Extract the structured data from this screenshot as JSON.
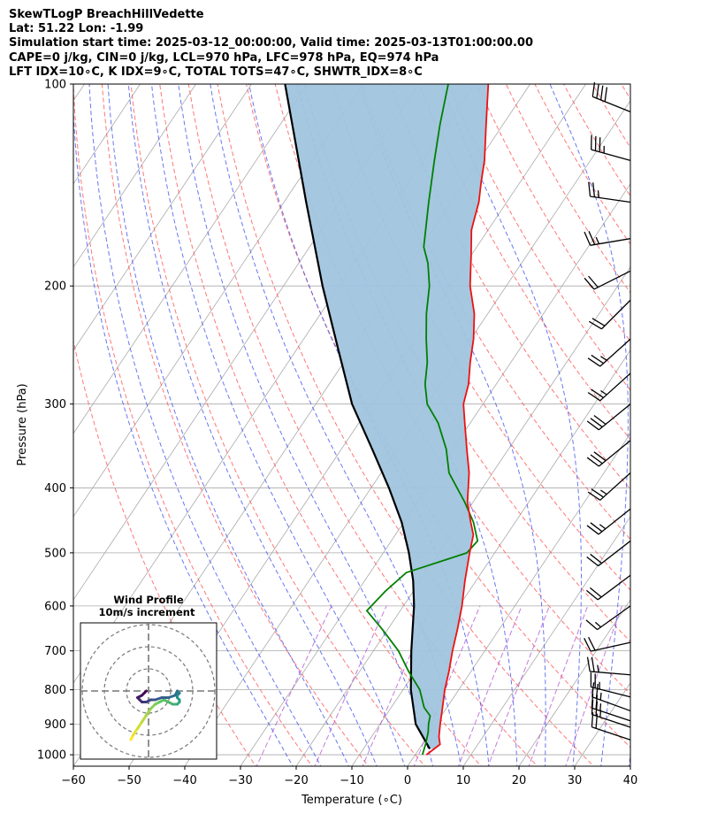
{
  "header": {
    "line1": "SkewTLogP BreachHillVedette",
    "line2": "Lat: 51.22   Lon: -1.99",
    "line3": "Simulation start time: 2025-03-12_00:00:00, Valid time: 2025-03-13T01:00:00.00",
    "line4": "CAPE=0 j/kg, CIN=0 j/kg, LCL=970 hPa, LFC=978 hPa, EQ=974 hPa",
    "line5": "LFT IDX=10∘C, K IDX=9∘C, TOTAL TOTS=47∘C, SHWTR_IDX=8∘C"
  },
  "chart_data": {
    "type": "line",
    "subtype": "skew-T log-P",
    "xlabel": "Temperature (∘C)",
    "ylabel": "Pressure (hPa)",
    "xlim": [
      -60,
      40
    ],
    "ylim": [
      1040,
      100
    ],
    "y_scale": "log",
    "x_ticks": [
      "−60",
      "−50",
      "−40",
      "−30",
      "−20",
      "−10",
      "0",
      "10",
      "20",
      "30",
      "40"
    ],
    "y_ticks": [
      "100",
      "200",
      "300",
      "400",
      "500",
      "600",
      "700",
      "800",
      "900",
      "1000"
    ],
    "y_tick_values": [
      100,
      200,
      300,
      400,
      500,
      600,
      700,
      800,
      900,
      1000
    ],
    "grid": true,
    "colors": {
      "temperature": "#ee1111",
      "dewpoint": "#008000",
      "parcel": "#000000",
      "cape_fill": "#a0c4de",
      "dry_adiabat": "#ff5555",
      "moist_adiabat": "#4455ee",
      "mixing_ratio": "#aa44cc",
      "isotherm": "#aaaaaa"
    },
    "series": [
      {
        "key": "temperature",
        "points": [
          [
            1000,
            2.0
          ],
          [
            965,
            3.2
          ],
          [
            940,
            2.1
          ],
          [
            900,
            0.8
          ],
          [
            850,
            -0.8
          ],
          [
            800,
            -2.5
          ],
          [
            750,
            -4.0
          ],
          [
            700,
            -5.8
          ],
          [
            650,
            -7.5
          ],
          [
            600,
            -9.5
          ],
          [
            550,
            -12.0
          ],
          [
            500,
            -14.5
          ],
          [
            470,
            -16.0
          ],
          [
            450,
            -18.0
          ],
          [
            420,
            -21.0
          ],
          [
            380,
            -24.2
          ],
          [
            350,
            -27.5
          ],
          [
            320,
            -31.0
          ],
          [
            300,
            -33.5
          ],
          [
            280,
            -35.0
          ],
          [
            260,
            -37.3
          ],
          [
            240,
            -39.5
          ],
          [
            220,
            -42.4
          ],
          [
            200,
            -46.5
          ],
          [
            180,
            -50.0
          ],
          [
            165,
            -53.0
          ],
          [
            150,
            -55.0
          ],
          [
            140,
            -57.0
          ],
          [
            130,
            -59.0
          ],
          [
            115,
            -63.0
          ],
          [
            100,
            -67.5
          ]
        ]
      },
      {
        "key": "dewpoint",
        "points": [
          [
            1000,
            1.3
          ],
          [
            960,
            0.5
          ],
          [
            925,
            -0.4
          ],
          [
            900,
            -1.3
          ],
          [
            875,
            -2.0
          ],
          [
            850,
            -4.1
          ],
          [
            800,
            -7.0
          ],
          [
            750,
            -11.3
          ],
          [
            700,
            -15.5
          ],
          [
            650,
            -21.0
          ],
          [
            610,
            -26.0
          ],
          [
            570,
            -25.0
          ],
          [
            535,
            -23.5
          ],
          [
            500,
            -15.0
          ],
          [
            480,
            -14.5
          ],
          [
            450,
            -17.5
          ],
          [
            420,
            -21.5
          ],
          [
            380,
            -27.8
          ],
          [
            350,
            -31.2
          ],
          [
            320,
            -35.8
          ],
          [
            300,
            -40.0
          ],
          [
            280,
            -42.8
          ],
          [
            260,
            -45.0
          ],
          [
            240,
            -48.0
          ],
          [
            220,
            -51.0
          ],
          [
            200,
            -53.8
          ],
          [
            185,
            -56.8
          ],
          [
            175,
            -59.5
          ],
          [
            150,
            -64.0
          ],
          [
            130,
            -68.0
          ],
          [
            115,
            -71.3
          ],
          [
            100,
            -74.7
          ]
        ]
      },
      {
        "key": "parcel",
        "points": [
          [
            980,
            1.9
          ],
          [
            900,
            -3.6
          ],
          [
            800,
            -8.6
          ],
          [
            700,
            -13.2
          ],
          [
            600,
            -18.1
          ],
          [
            550,
            -21.3
          ],
          [
            500,
            -25.4
          ],
          [
            450,
            -30.4
          ],
          [
            400,
            -36.8
          ],
          [
            350,
            -44.5
          ],
          [
            300,
            -53.5
          ],
          [
            250,
            -62.3
          ],
          [
            200,
            -73.0
          ],
          [
            150,
            -86.0
          ],
          [
            100,
            -104.0
          ]
        ]
      }
    ],
    "wind_barbs": [
      {
        "p": 110,
        "u": 20,
        "v": -8
      },
      {
        "p": 130,
        "u": 18,
        "v": -5
      },
      {
        "p": 150,
        "u": 14,
        "v": -2
      },
      {
        "p": 170,
        "u": 12,
        "v": 2
      },
      {
        "p": 190,
        "u": 10,
        "v": 5
      },
      {
        "p": 210,
        "u": 8,
        "v": 8
      },
      {
        "p": 240,
        "u": 10,
        "v": 9
      },
      {
        "p": 270,
        "u": 10,
        "v": 9
      },
      {
        "p": 300,
        "u": 11,
        "v": 9
      },
      {
        "p": 340,
        "u": 11,
        "v": 9
      },
      {
        "p": 380,
        "u": 10,
        "v": 9
      },
      {
        "p": 430,
        "u": 10,
        "v": 8
      },
      {
        "p": 480,
        "u": 9,
        "v": 7
      },
      {
        "p": 540,
        "u": 8,
        "v": 6
      },
      {
        "p": 600,
        "u": 7,
        "v": 5
      },
      {
        "p": 680,
        "u": 9,
        "v": 2
      },
      {
        "p": 760,
        "u": 12,
        "v": -1
      },
      {
        "p": 820,
        "u": 12,
        "v": -3
      },
      {
        "p": 860,
        "u": 11,
        "v": -4
      },
      {
        "p": 890,
        "u": 12,
        "v": -4
      },
      {
        "p": 910,
        "u": 12,
        "v": -4
      },
      {
        "p": 950,
        "u": 9,
        "v": -3
      }
    ],
    "hodograph": {
      "title": "Wind Profile",
      "subtitle": "10m/s increment",
      "rings_ms": [
        10,
        20,
        30
      ],
      "points": [
        [
          -8,
          -22
        ],
        [
          -7,
          -20
        ],
        [
          -5,
          -17
        ],
        [
          -3,
          -14
        ],
        [
          -1,
          -11
        ],
        [
          1,
          -8
        ],
        [
          3,
          -6
        ],
        [
          5,
          -5
        ],
        [
          7,
          -4
        ],
        [
          9,
          -5
        ],
        [
          11,
          -6
        ],
        [
          13,
          -6
        ],
        [
          14,
          -5
        ],
        [
          14,
          -4
        ],
        [
          13,
          -3
        ],
        [
          13,
          -2
        ],
        [
          14,
          -1
        ],
        [
          13,
          0
        ],
        [
          12,
          -2
        ],
        [
          9,
          -3
        ],
        [
          6,
          -3
        ],
        [
          3,
          -4
        ],
        [
          1,
          -4
        ],
        [
          -1,
          -5
        ],
        [
          -3,
          -5
        ],
        [
          -4,
          -4
        ],
        [
          -5,
          -3
        ],
        [
          -3,
          -2
        ],
        [
          -2,
          -1
        ],
        [
          -1,
          0
        ]
      ]
    }
  }
}
